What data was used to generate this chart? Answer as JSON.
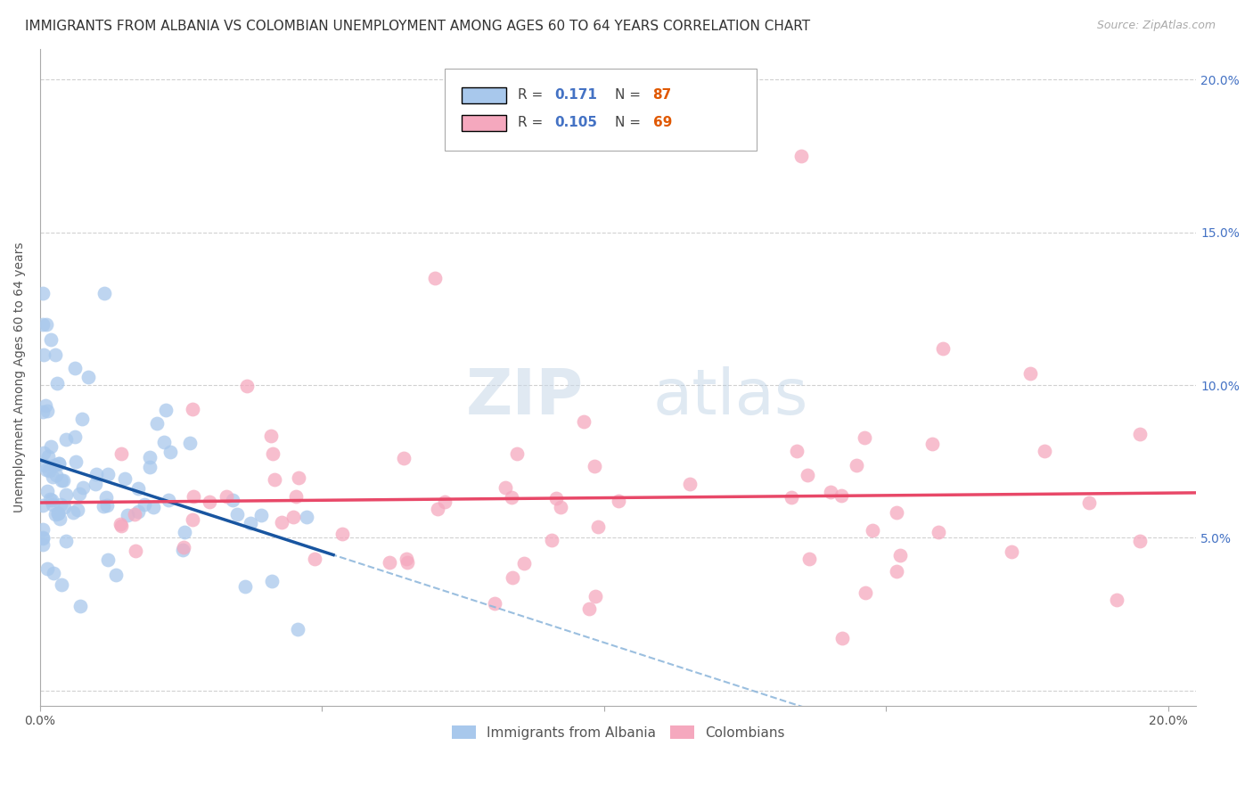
{
  "title": "IMMIGRANTS FROM ALBANIA VS COLOMBIAN UNEMPLOYMENT AMONG AGES 60 TO 64 YEARS CORRELATION CHART",
  "source": "Source: ZipAtlas.com",
  "ylabel": "Unemployment Among Ages 60 to 64 years",
  "legend_r_albania": "0.171",
  "legend_n_albania": "87",
  "legend_r_colombian": "0.105",
  "legend_n_colombian": "69",
  "albania_color": "#a8c8ec",
  "colombian_color": "#f5a8be",
  "albania_line_color": "#1855a0",
  "colombian_line_color": "#e84868",
  "trendline_dashed_color": "#90b8dc",
  "background_color": "#ffffff",
  "grid_color": "#cccccc",
  "xlim": [
    0.0,
    0.205
  ],
  "ylim": [
    -0.005,
    0.21
  ],
  "title_fontsize": 11,
  "axis_label_fontsize": 10,
  "tick_fontsize": 10,
  "source_fontsize": 9
}
